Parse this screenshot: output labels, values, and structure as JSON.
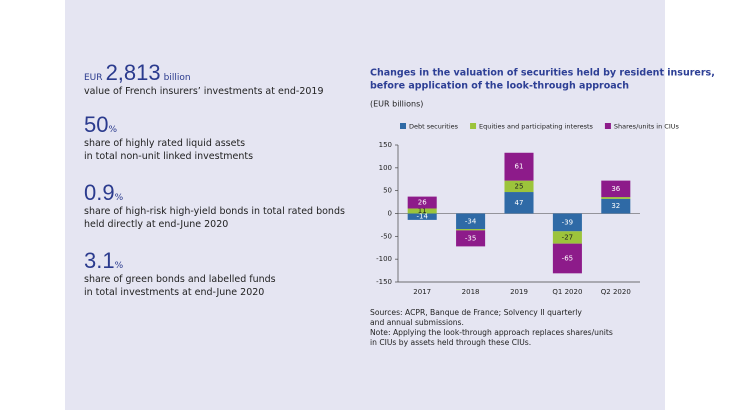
{
  "key_figures": [
    {
      "prefix": "EUR",
      "figure": "2,813",
      "unit": "billion",
      "lines": [
        "value of French insurers’ investments at end-2019"
      ]
    },
    {
      "figure": "50",
      "unit": "%",
      "lines": [
        "share of highly rated liquid assets",
        "in total non-unit linked investments"
      ]
    },
    {
      "figure": "0.9",
      "unit": "%",
      "lines": [
        "share of high-risk high-yield bonds in total rated bonds",
        "held directly at end-June 2020"
      ]
    },
    {
      "figure": "3.1",
      "unit": "%",
      "lines": [
        "share of green bonds and labelled funds",
        "in total investments at end-June 2020"
      ]
    }
  ],
  "chart_data": {
    "type": "stacked-bar",
    "title": [
      "Changes in the valuation of securities held by resident insurers,",
      "before application of the look-through approach"
    ],
    "subtitle": "(EUR billions)",
    "categories": [
      "2017",
      "2018",
      "2019",
      "Q1 2020",
      "Q2 2020"
    ],
    "series": [
      {
        "name": "Debt securities",
        "color": "#2f6aa6",
        "values": [
          -14,
          -34,
          47,
          -39,
          32
        ]
      },
      {
        "name": "Equities and participating interests",
        "color": "#9cc43b",
        "values": [
          11,
          -3,
          25,
          -27,
          4
        ]
      },
      {
        "name": "Shares/units in CIUs",
        "color": "#8d1b8a",
        "values": [
          26,
          -35,
          61,
          -65,
          36
        ]
      }
    ],
    "ylim": [
      -150,
      150
    ],
    "yticks": [
      -150,
      -100,
      -50,
      0,
      50,
      100,
      150
    ],
    "notes": [
      "Sources: ACPR, Banque de France; Solvency II quarterly",
      "and annual submissions.",
      "Note: Applying the look-through approach replaces shares/units",
      "in CIUs by assets held through these CIUs."
    ]
  }
}
